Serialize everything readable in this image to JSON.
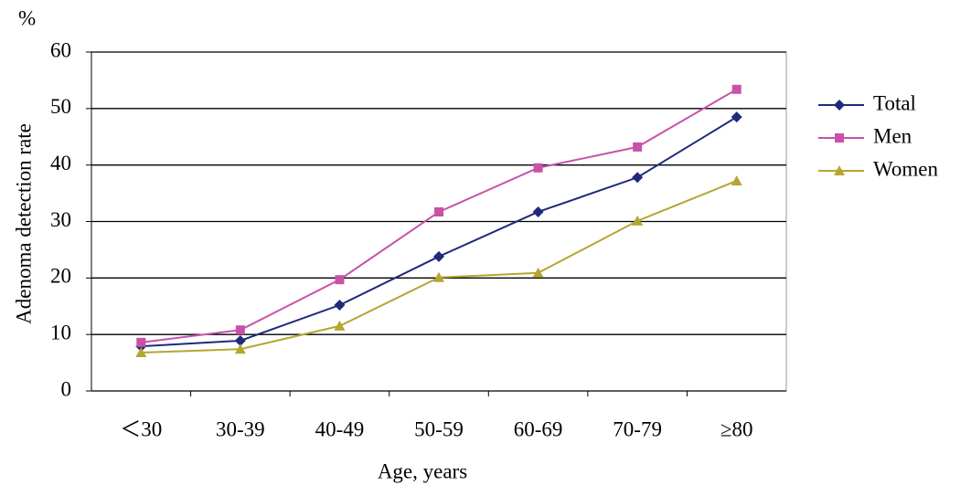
{
  "chart_data": {
    "type": "line",
    "y_unit": "%",
    "y_label": "Adenoma detection rate",
    "x_label": "Age, years",
    "categories": [
      "＜30",
      "30-39",
      "40-49",
      "50-59",
      "60-69",
      "70-79",
      "≥80"
    ],
    "series": [
      {
        "name": "Total",
        "color": "#1f2a7a",
        "marker": "diamond",
        "values": [
          7.9,
          8.9,
          15.2,
          23.8,
          31.7,
          37.8,
          48.5
        ]
      },
      {
        "name": "Men",
        "color": "#c852a8",
        "marker": "square",
        "values": [
          8.6,
          10.8,
          19.7,
          31.7,
          39.5,
          43.2,
          53.4
        ]
      },
      {
        "name": "Women",
        "color": "#b5a631",
        "marker": "triangle",
        "values": [
          6.8,
          7.4,
          11.5,
          20.1,
          20.9,
          30.1,
          37.2
        ]
      }
    ],
    "ylim": [
      0,
      60
    ],
    "yticks": [
      0,
      10,
      20,
      30,
      40,
      50,
      60
    ],
    "grid": true,
    "legend": "right"
  }
}
